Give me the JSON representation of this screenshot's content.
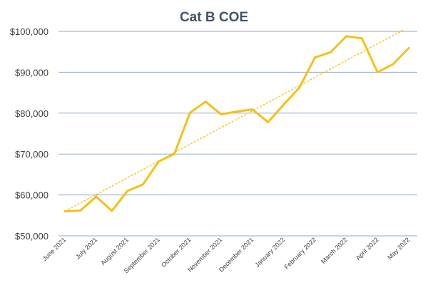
{
  "chart_data": {
    "type": "line",
    "title": "Cat B COE",
    "xlabel": "",
    "ylabel": "",
    "ylim": [
      50000,
      100000
    ],
    "y_ticks": [
      50000,
      60000,
      70000,
      80000,
      90000,
      100000
    ],
    "y_tick_labels": [
      "$50,000",
      "$60,000",
      "$70,000",
      "$80,000",
      "$90,000",
      "$100,000"
    ],
    "x_tick_labels": [
      "June 2021",
      "July 2021",
      "August 2021",
      "September 2021",
      "October 2021",
      "November 2021",
      "December 2021",
      "January 2022",
      "February 2022",
      "March 2022",
      "April 2022",
      "May 2022"
    ],
    "x_tick_positions": [
      0,
      2,
      4,
      6,
      8,
      10,
      12,
      14,
      16,
      18,
      20,
      22
    ],
    "grid": true,
    "legend": "none",
    "series": [
      {
        "values": [
          56000,
          56200,
          59600,
          56100,
          61000,
          62600,
          68200,
          70000,
          80100,
          82800,
          79700,
          80400,
          80900,
          77800,
          82100,
          86200,
          93600,
          94900,
          98800,
          98300,
          90000,
          92000,
          95900
        ],
        "color": "#f2c218"
      }
    ],
    "trendline": {
      "type": "linear",
      "start": 56000,
      "end": 100300,
      "color": "#f2c218",
      "style": "dashed"
    },
    "colors": {
      "gridline": "#8eaacb",
      "title": "#44546a",
      "tick_text": "#404040"
    }
  }
}
